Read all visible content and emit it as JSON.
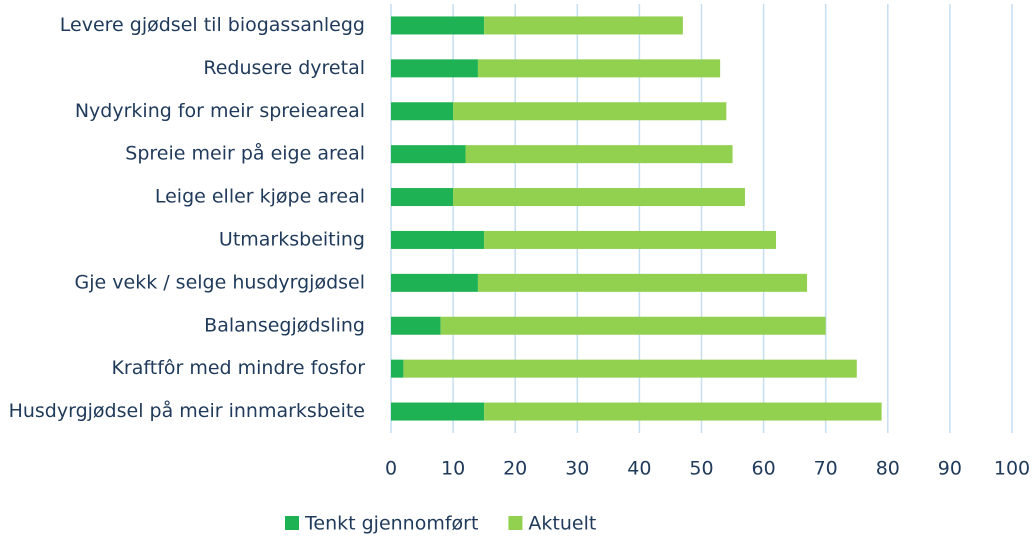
{
  "chart_data": {
    "type": "stacked-barh",
    "categories": [
      "Levere gjødsel til biogassanlegg",
      "Redusere dyretal",
      "Nydyrking for meir spreieareal",
      "Spreie meir på eige areal",
      "Leige eller kjøpe areal",
      "Utmarksbeiting",
      "Gje vekk / selge husdyrgjødsel",
      "Balansegjødsling",
      "Kraftfôr med mindre fosfor",
      "Husdyrgjødsel på meir innmarksbeite"
    ],
    "series": [
      {
        "name": "Tenkt gjennomført",
        "color": "#1fb255",
        "values": [
          15,
          14,
          10,
          12,
          10,
          15,
          14,
          8,
          2,
          15
        ]
      },
      {
        "name": "Aktuelt",
        "color": "#92d050",
        "values": [
          32,
          39,
          44,
          43,
          47,
          47,
          53,
          62,
          73,
          64
        ]
      }
    ],
    "xlim": [
      0,
      100
    ],
    "xticks": [
      0,
      10,
      20,
      30,
      40,
      50,
      60,
      70,
      80,
      90,
      100
    ],
    "grid": true,
    "legend": "bottom"
  }
}
